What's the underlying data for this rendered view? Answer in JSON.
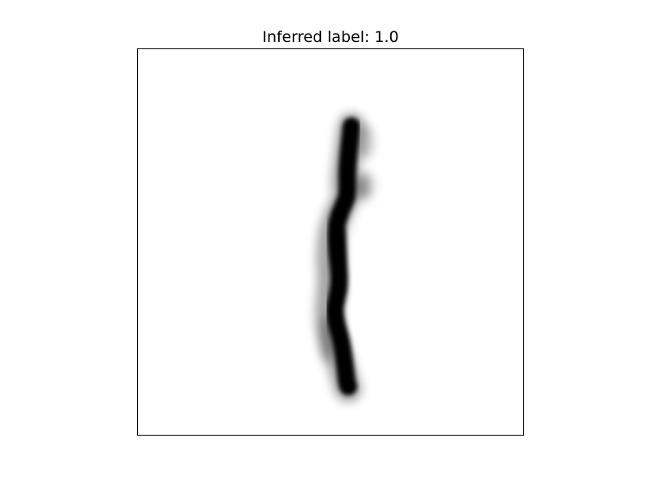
{
  "figure": {
    "title": "Inferred label: 1.0"
  },
  "image": {
    "subject": "handwritten digit one",
    "colormap": "gray_r",
    "ink_color": "#000000",
    "background_color": "#ffffff"
  }
}
